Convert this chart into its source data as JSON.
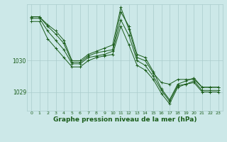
{
  "background_color": "#cce8e8",
  "plot_bg_color": "#cce8e8",
  "grid_color": "#aacccc",
  "line_color": "#1a5c1a",
  "xlabel": "Graphe pression niveau de la mer (hPa)",
  "xlabel_fontsize": 6.5,
  "ylim": [
    1028.4,
    1031.8
  ],
  "yticks": [
    1029,
    1030
  ],
  "xlim": [
    -0.5,
    23.5
  ],
  "xticks": [
    0,
    1,
    2,
    3,
    4,
    5,
    6,
    7,
    8,
    9,
    10,
    11,
    12,
    13,
    14,
    15,
    16,
    17,
    18,
    19,
    20,
    21,
    22,
    23
  ],
  "tick_fontsize": 4.5,
  "ytick_fontsize": 5.5,
  "series": [
    [
      1031.4,
      1031.4,
      1031.1,
      1030.85,
      1030.55,
      1029.95,
      1029.95,
      1030.15,
      1030.25,
      1030.3,
      1030.35,
      1031.55,
      1031.1,
      1030.2,
      1030.1,
      1029.65,
      1029.1,
      1028.75,
      1029.25,
      1029.35,
      1029.45,
      1029.15,
      1029.15,
      1029.15
    ],
    [
      1031.4,
      1031.4,
      1031.15,
      1030.95,
      1030.65,
      1030.0,
      1030.0,
      1030.2,
      1030.3,
      1030.4,
      1030.5,
      1031.7,
      1031.0,
      1030.1,
      1030.0,
      1029.6,
      1029.3,
      1029.25,
      1029.4,
      1029.4,
      1029.4,
      1029.15,
      1029.15,
      1029.15
    ],
    [
      1031.35,
      1031.35,
      1030.95,
      1030.65,
      1030.35,
      1029.9,
      1029.9,
      1030.1,
      1030.15,
      1030.2,
      1030.3,
      1031.3,
      1030.8,
      1030.0,
      1029.85,
      1029.5,
      1029.05,
      1028.7,
      1029.2,
      1029.25,
      1029.35,
      1029.05,
      1029.05,
      1029.05
    ],
    [
      1031.25,
      1031.25,
      1030.7,
      1030.4,
      1030.1,
      1029.8,
      1029.8,
      1030.0,
      1030.1,
      1030.15,
      1030.2,
      1031.1,
      1030.5,
      1029.85,
      1029.7,
      1029.4,
      1028.95,
      1028.62,
      1029.15,
      1029.25,
      1029.3,
      1029.0,
      1029.0,
      1029.0
    ]
  ],
  "fig_width": 3.2,
  "fig_height": 2.0,
  "dpi": 100
}
